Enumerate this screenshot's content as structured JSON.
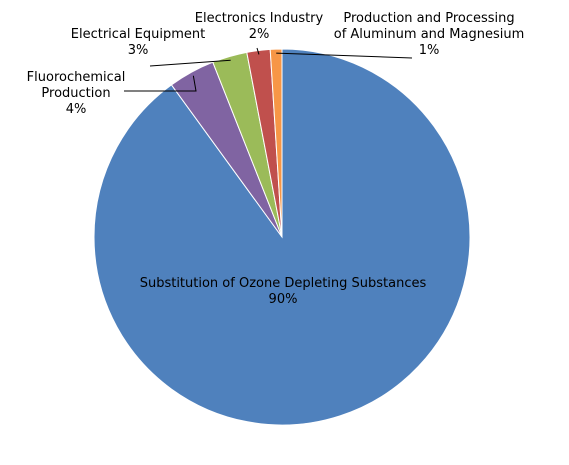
{
  "chart_data": {
    "type": "pie",
    "title": "",
    "slices": [
      {
        "name_lines": [
          "Substitution of Ozone Depleting Substances"
        ],
        "value": 90,
        "label": "90%",
        "color": "#4F81BD"
      },
      {
        "name_lines": [
          "Fluorochemical",
          "Production"
        ],
        "value": 4,
        "label": "4%",
        "color": "#8064A2"
      },
      {
        "name_lines": [
          "Electrical Equipment"
        ],
        "value": 3,
        "label": "3%",
        "color": "#9BBB59"
      },
      {
        "name_lines": [
          "Electronics Industry"
        ],
        "value": 2,
        "label": "2%",
        "color": "#C0504D"
      },
      {
        "name_lines": [
          "Production and Processing",
          "of Aluminum and Magnesium"
        ],
        "value": 1,
        "label": "1%",
        "color": "#F79646"
      }
    ]
  }
}
